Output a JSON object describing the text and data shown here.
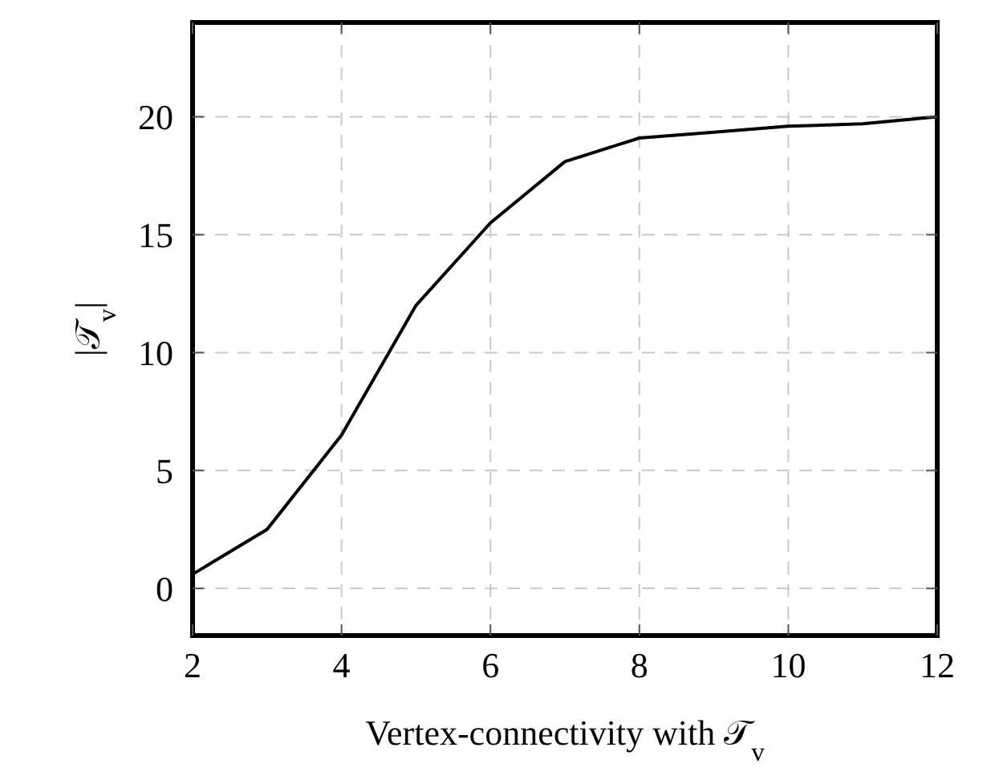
{
  "chart_data": {
    "type": "line",
    "xlabel": "Vertex-connectivity with 𝒯$_{v}$",
    "ylabel": "|𝒯$_{v}$|",
    "x": [
      2,
      3,
      4,
      5,
      6,
      7,
      8,
      9,
      10,
      11,
      12
    ],
    "series": [
      {
        "color": "#000000",
        "values": [
          0.6,
          2.5,
          6.5,
          12,
          15.5,
          18.1,
          19.1,
          19.35,
          19.6,
          19.7,
          20
        ]
      }
    ],
    "xlim": [
      2,
      12
    ],
    "xticks": [
      2,
      4,
      6,
      8,
      10,
      12
    ],
    "ylim": [
      -2,
      24
    ],
    "yticks": [
      0,
      5,
      10,
      15,
      20
    ],
    "grid": true,
    "marker": "none",
    "line_style": "solid"
  }
}
